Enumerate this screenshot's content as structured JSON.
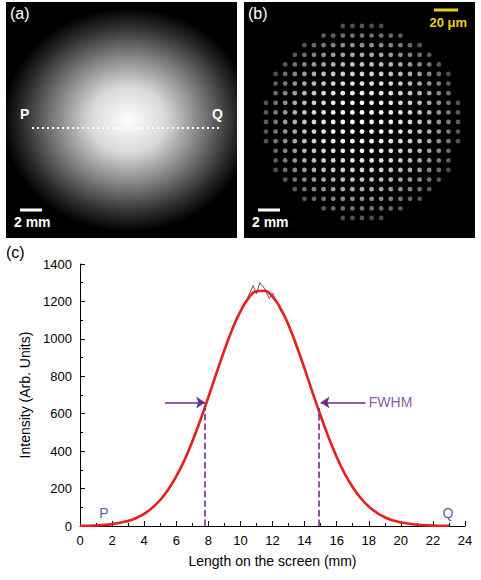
{
  "panels": [
    {
      "label": "(a)",
      "line_ends": [
        "P",
        "Q"
      ],
      "scale_bar": "2 mm"
    },
    {
      "label": "(b)",
      "scale_bar": "2 mm",
      "inset_scale_bar": "20 μm"
    }
  ],
  "chart_data": {
    "type": "line",
    "panel_label": "(c)",
    "x_label": "Length on the screen (mm)",
    "y_label": "Intensity (Arb. Units)",
    "xlim": [
      0,
      24
    ],
    "xticks": [
      0,
      2,
      4,
      6,
      8,
      10,
      12,
      14,
      16,
      18,
      20,
      22,
      24
    ],
    "ylim": [
      0,
      1400
    ],
    "yticks": [
      0,
      200,
      400,
      600,
      800,
      1000,
      1200,
      1400
    ],
    "grid": false,
    "series": [
      {
        "color": "#555555",
        "line_style": "solid",
        "x": [
          0.2,
          1,
          2,
          3,
          3.5,
          4,
          4.5,
          5,
          5.5,
          6,
          6.5,
          7,
          7.5,
          8,
          8.5,
          9,
          9.5,
          10,
          10.5,
          10.8,
          11,
          11.2,
          11.5,
          11.8,
          12,
          12.5,
          13,
          13.5,
          14,
          14.5,
          15,
          15.5,
          16,
          16.5,
          17,
          17.5,
          18,
          18.5,
          19,
          19.5,
          20,
          21,
          22,
          22.8
        ],
        "values": [
          0,
          4,
          8,
          30,
          38,
          70,
          92,
          145,
          188,
          272,
          342,
          458,
          558,
          695,
          808,
          945,
          1060,
          1140,
          1230,
          1285,
          1240,
          1300,
          1270,
          1215,
          1245,
          1150,
          1085,
          950,
          852,
          705,
          595,
          465,
          375,
          272,
          212,
          145,
          108,
          66,
          50,
          27,
          20,
          6,
          3,
          0
        ]
      },
      {
        "color": "#e8201a",
        "line_style": "solid",
        "x": [
          0,
          1,
          2,
          3,
          3.5,
          4,
          4.5,
          5,
          5.5,
          6,
          6.5,
          7,
          7.5,
          8,
          8.5,
          9,
          9.5,
          10,
          10.5,
          11,
          11.5,
          12,
          12.5,
          13,
          13.5,
          14,
          14.5,
          15,
          15.5,
          16,
          16.5,
          17,
          17.5,
          18,
          18.5,
          19,
          19.5,
          20,
          21,
          22,
          23
        ],
        "values": [
          1,
          3,
          10,
          27,
          43,
          65,
          97,
          139,
          195,
          265,
          350,
          451,
          565,
          688,
          815,
          939,
          1052,
          1147,
          1216,
          1254,
          1257,
          1226,
          1163,
          1073,
          963,
          840,
          713,
          589,
          473,
          369,
          280,
          207,
          149,
          104,
          71,
          47,
          30,
          19,
          7,
          2,
          1
        ]
      }
    ],
    "fwhm": {
      "color": "#6a2c91",
      "x": [
        7.8,
        14.9
      ],
      "y": 630,
      "arrows": [
        {
          "from": [
            5.3,
            660
          ],
          "to": [
            7.8,
            660
          ]
        },
        {
          "from": [
            17.8,
            660
          ],
          "to": [
            15.0,
            660
          ]
        }
      ]
    },
    "annotations": [
      {
        "text": "FWHM",
        "x": 18.0,
        "y": 660,
        "color": "#6a2c91"
      },
      {
        "text": "P",
        "x": 1.2,
        "y": 70,
        "color": "#33338f"
      },
      {
        "text": "Q",
        "x": 22.6,
        "y": 70,
        "color": "#33338f"
      }
    ]
  }
}
